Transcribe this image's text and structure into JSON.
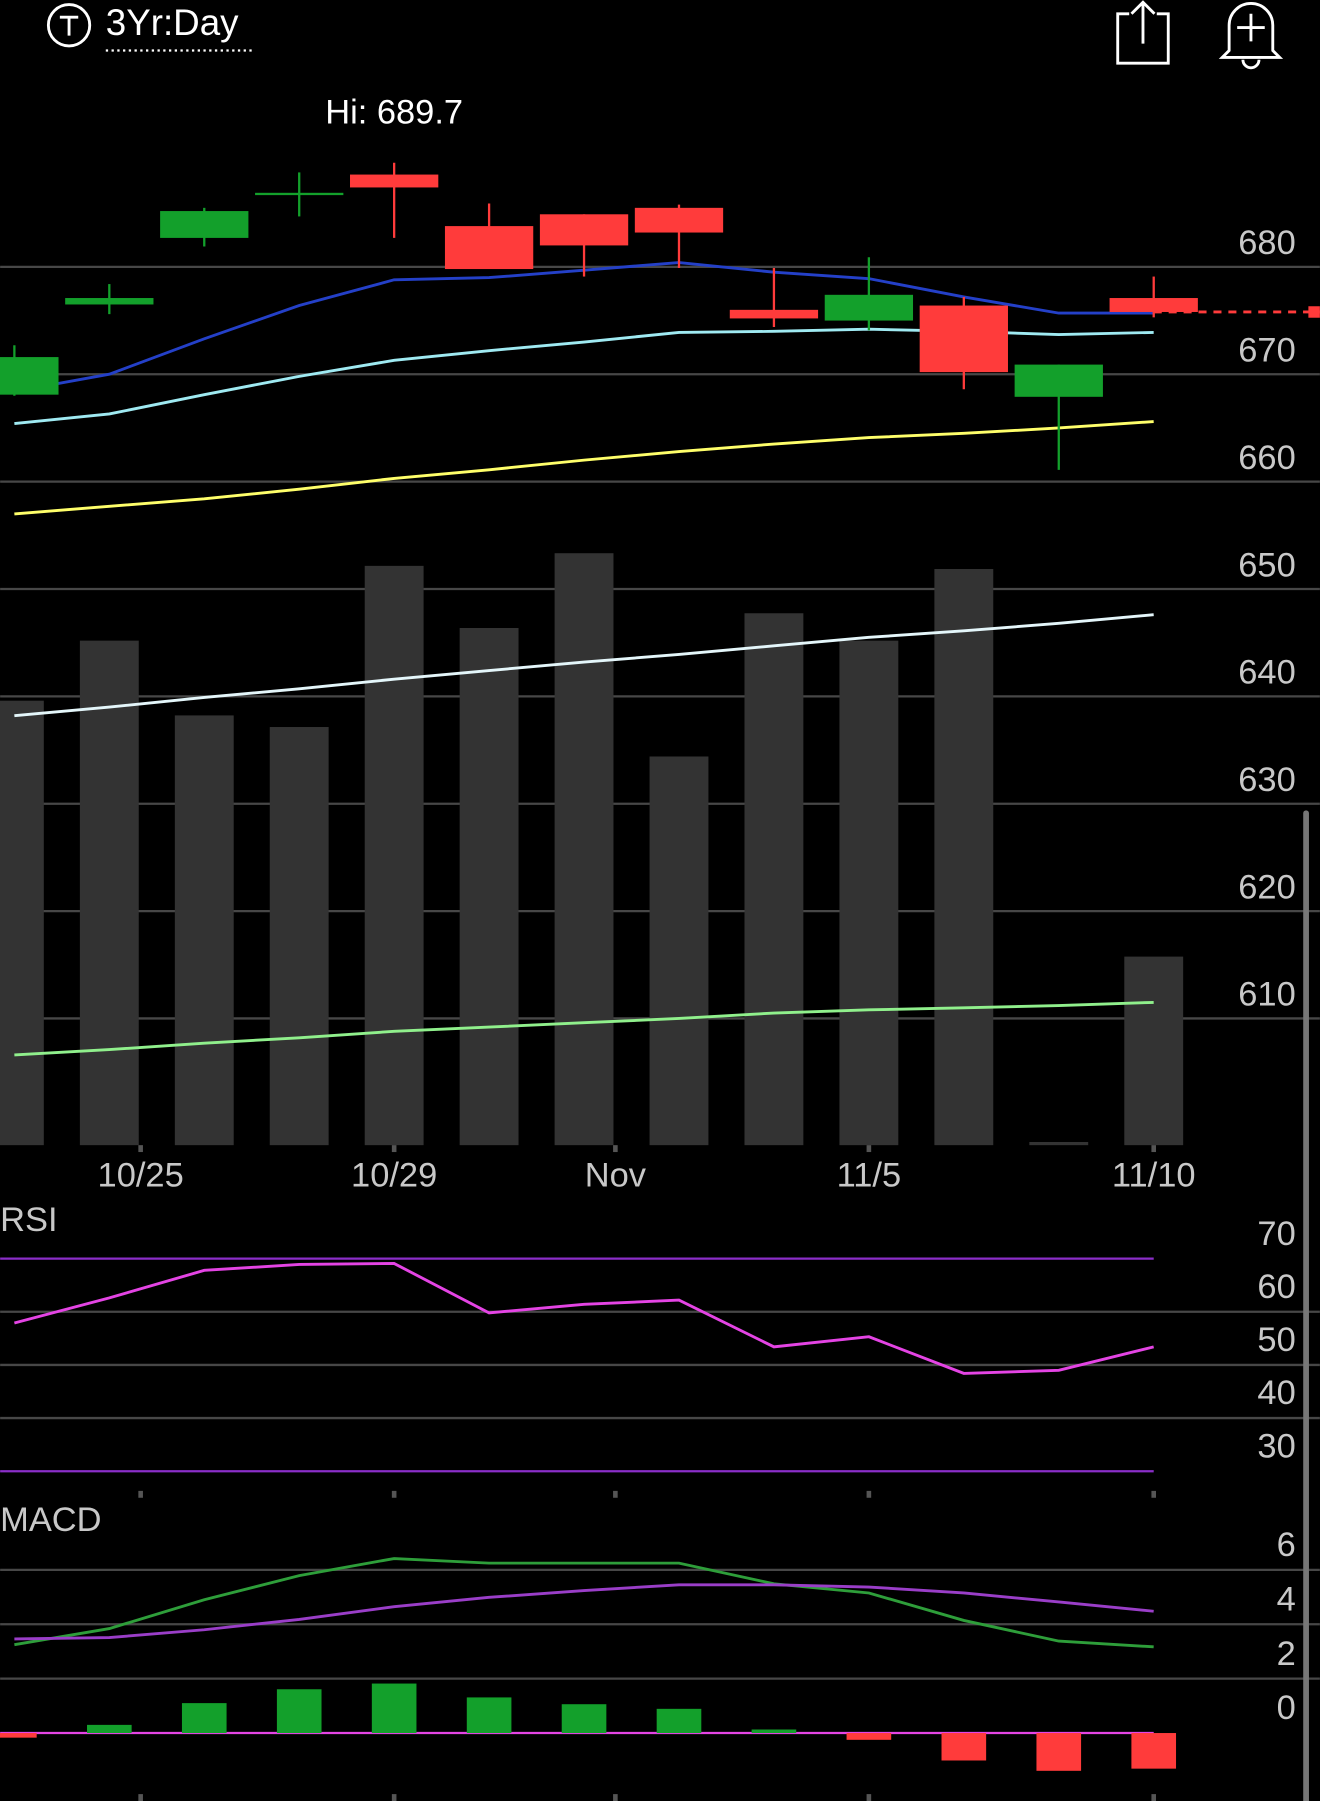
{
  "header": {
    "title": "3Yr:Day"
  },
  "chart_data": [
    {
      "type": "candlestick",
      "x": [
        0,
        1,
        2,
        3,
        4,
        5,
        6,
        7,
        8,
        9,
        10,
        11,
        12
      ],
      "open": [
        668.1,
        676.5,
        682.7,
        686.7,
        688.6,
        683.8,
        684.9,
        685.5,
        676.0,
        675.0,
        676.4,
        667.9,
        677.1
      ],
      "high": [
        672.7,
        678.4,
        685.5,
        688.8,
        689.7,
        685.9,
        684.9,
        685.8,
        679.9,
        680.9,
        677.2,
        670.9,
        679.1
      ],
      "low": [
        668.0,
        675.6,
        681.9,
        684.7,
        682.7,
        679.8,
        679.1,
        679.9,
        674.4,
        674.1,
        668.6,
        661.1,
        675.3
      ],
      "close": [
        671.6,
        677.1,
        685.2,
        686.9,
        687.4,
        679.8,
        682.0,
        683.2,
        675.2,
        677.4,
        670.2,
        670.9,
        675.8
      ],
      "up_color": "#13a02b",
      "down_color": "#ff3b3b",
      "xlim": [
        -0.15,
        13.75
      ],
      "xticks": [
        {
          "value": 1.33,
          "label": "10/25"
        },
        {
          "value": 4,
          "label": "10/29"
        },
        {
          "value": 6.33,
          "label": "Nov"
        },
        {
          "value": 9,
          "label": "11/5"
        },
        {
          "value": 12,
          "label": "11/10"
        }
      ],
      "ylim": [
        598.2,
        696.3
      ],
      "yticks": [
        610,
        620,
        630,
        640,
        650,
        660,
        670,
        680
      ],
      "grid": true,
      "annotations": [
        {
          "text": "Hi: 689.7",
          "x": 4,
          "y": 689.7
        }
      ],
      "last_price_line": true,
      "series": [
        {
          "color": "#2440c8",
          "values": [
            668.4,
            670.0,
            673.3,
            676.4,
            678.8,
            679.0,
            679.7,
            680.4,
            679.5,
            678.9,
            677.2,
            675.7,
            675.7
          ]
        },
        {
          "color": "#9feaf2",
          "values": [
            665.4,
            666.3,
            668.1,
            669.8,
            671.3,
            672.2,
            673.0,
            673.9,
            674.0,
            674.2,
            674.0,
            673.7,
            673.9
          ]
        },
        {
          "color": "#ffff6a",
          "values": [
            657.0,
            657.7,
            658.4,
            659.3,
            660.3,
            661.1,
            662.0,
            662.8,
            663.5,
            664.1,
            664.5,
            665.0,
            665.6
          ]
        },
        {
          "color": "#e4f6fa",
          "values": [
            638.2,
            639.0,
            639.9,
            640.7,
            641.6,
            642.4,
            643.2,
            643.9,
            644.7,
            645.5,
            646.1,
            646.8,
            647.6
          ]
        },
        {
          "color": "#90f08c",
          "values": [
            606.6,
            607.1,
            607.7,
            608.2,
            608.8,
            609.2,
            609.6,
            610.0,
            610.5,
            610.8,
            611.0,
            611.2,
            611.5
          ]
        }
      ],
      "volume": {
        "color": "#333333",
        "axis": "y2",
        "values": [
          42.2,
          47.9,
          40.8,
          39.7,
          55.0,
          49.1,
          56.2,
          36.9,
          50.5,
          47.9,
          54.7,
          0.3,
          17.9
        ]
      },
      "y2lim": [
        0,
        100
      ]
    },
    {
      "type": "line",
      "title": "RSI",
      "ylim": [
        26.3,
        79.9
      ],
      "yticks": [
        30,
        40,
        50,
        60,
        70
      ],
      "grid": true,
      "bands": [
        30,
        70
      ],
      "band_color": "#8a2ec8",
      "series": [
        {
          "color": "#e444e4",
          "values": [
            57.9,
            62.6,
            67.8,
            68.9,
            69.1,
            59.8,
            61.4,
            62.2,
            53.4,
            55.3,
            48.4,
            49.0,
            53.4
          ]
        }
      ]
    },
    {
      "type": "macd",
      "title": "MACD",
      "ylim": [
        -2.5,
        8.4
      ],
      "yticks": [
        0,
        2,
        4,
        6
      ],
      "grid": true,
      "zero_line_color": "#e444e4",
      "up_color": "#13a02b",
      "down_color": "#ff3b3b",
      "histogram": [
        -0.17,
        0.3,
        1.1,
        1.61,
        1.82,
        1.31,
        1.06,
        0.89,
        0.13,
        -0.25,
        -1.01,
        -1.39,
        -1.31
      ],
      "series": [
        {
          "color": "#2e9e3a",
          "values": [
            3.25,
            3.84,
            4.9,
            5.79,
            6.42,
            6.25,
            6.25,
            6.25,
            5.49,
            5.15,
            4.14,
            3.38,
            3.17
          ]
        },
        {
          "color": "#9a3ec8",
          "values": [
            3.46,
            3.51,
            3.8,
            4.18,
            4.65,
            4.99,
            5.24,
            5.45,
            5.45,
            5.37,
            5.15,
            4.82,
            4.48
          ]
        }
      ]
    }
  ]
}
